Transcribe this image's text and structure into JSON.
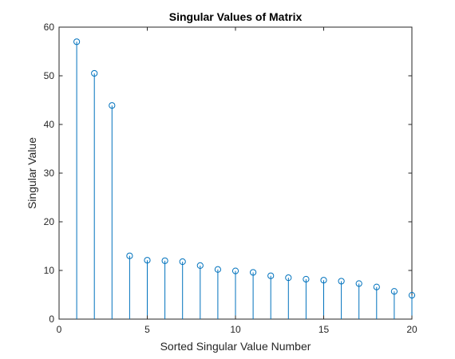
{
  "chart_data": {
    "type": "stem",
    "title": "Singular Values of Matrix",
    "xlabel": "Sorted Singular Value Number",
    "ylabel": "Singular Value",
    "xlim": [
      0,
      20
    ],
    "ylim": [
      0,
      60
    ],
    "xticks": [
      "0",
      "5",
      "10",
      "15",
      "20"
    ],
    "yticks": [
      "0",
      "10",
      "20",
      "30",
      "40",
      "50",
      "60"
    ],
    "grid": false,
    "marker": "open-circle",
    "color": "#0072BD",
    "x": [
      1,
      2,
      3,
      4,
      5,
      6,
      7,
      8,
      9,
      10,
      11,
      12,
      13,
      14,
      15,
      16,
      17,
      18,
      19,
      20
    ],
    "values": [
      57.0,
      50.5,
      43.9,
      13.0,
      12.1,
      12.0,
      11.8,
      11.0,
      10.2,
      9.9,
      9.6,
      8.9,
      8.5,
      8.2,
      8.0,
      7.8,
      7.3,
      6.6,
      5.7,
      4.9
    ]
  }
}
